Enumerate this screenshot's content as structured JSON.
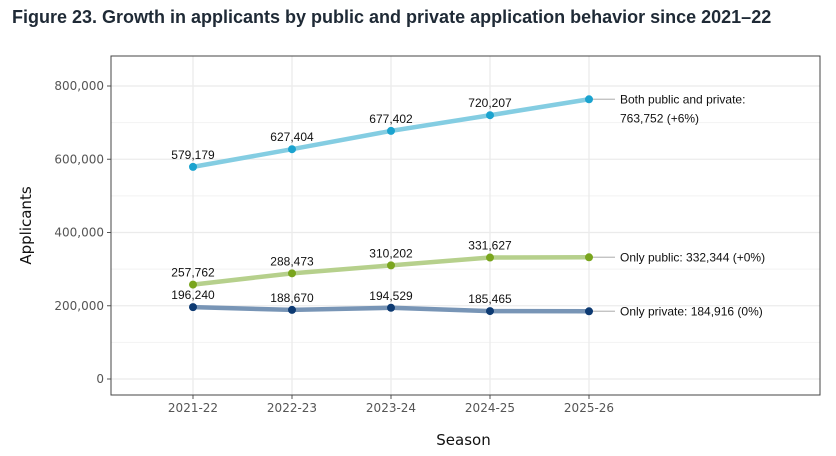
{
  "figure_title": "Figure 23. Growth in applicants by public and private application behavior since 2021–22",
  "chart_data": {
    "type": "line",
    "title": "Figure 23. Growth in applicants by public and private application behavior since 2021–22",
    "xlabel": "Season",
    "ylabel": "Applicants",
    "categories": [
      "2021-22",
      "2022-23",
      "2023-24",
      "2024-25",
      "2025-26"
    ],
    "ylim": [
      0,
      800000
    ],
    "yticks": [
      0,
      200000,
      400000,
      600000,
      800000
    ],
    "ytick_labels": [
      "0",
      "200,000",
      "400,000",
      "600,000",
      "800,000"
    ],
    "grid": true,
    "legend": "none (direct end labels)",
    "series": [
      {
        "key": "both",
        "values": [
          579179,
          627404,
          677402,
          720207,
          763752
        ],
        "data_labels": [
          "579,179",
          "627,404",
          "677,402",
          "720,207"
        ],
        "end_label": [
          "Both public and private:",
          "763,752 (+6%)"
        ],
        "line_color": "#84cde2",
        "point_color": "#1ba3cf"
      },
      {
        "key": "public",
        "values": [
          257762,
          288473,
          310202,
          331627,
          332344
        ],
        "data_labels": [
          "257,762",
          "288,473",
          "310,202",
          "331,627"
        ],
        "end_label": [
          "Only public: 332,344 (+0%)"
        ],
        "line_color": "#b6d08c",
        "point_color": "#79a51d"
      },
      {
        "key": "private",
        "values": [
          196240,
          188670,
          194529,
          185465,
          184916
        ],
        "data_labels": [
          "196,240",
          "188,670",
          "194,529",
          "185,465"
        ],
        "end_label": [
          "Only private: 184,916 (0%)"
        ],
        "line_color": "#7895b6",
        "point_color": "#0d3a72"
      }
    ]
  }
}
